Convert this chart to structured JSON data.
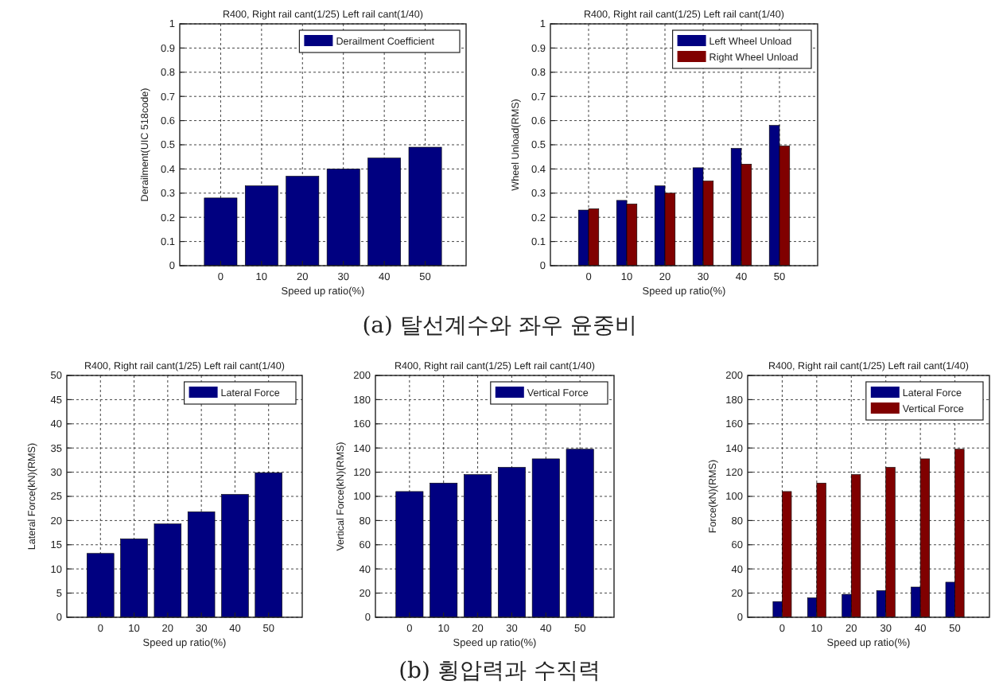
{
  "chart_data": [
    {
      "type": "bar",
      "title": "R400, Right rail cant(1/25) Left rail cant(1/40)",
      "xlabel": "Speed up ratio(%)",
      "ylabel": "Derailment(UIC 518code)",
      "categories": [
        "0",
        "10",
        "20",
        "30",
        "40",
        "50"
      ],
      "series": [
        {
          "name": "Derailment Coefficient",
          "color": "#000080",
          "values": [
            0.28,
            0.33,
            0.37,
            0.4,
            0.445,
            0.49
          ]
        }
      ],
      "ylim": [
        0,
        1
      ],
      "yticks": [
        0,
        0.1,
        0.2,
        0.3,
        0.4,
        0.5,
        0.6,
        0.7,
        0.8,
        0.9,
        1
      ],
      "grid": true,
      "legend": "top right",
      "annotations": [
        "(a) 탈선계수와 좌우 윤중비"
      ]
    },
    {
      "type": "bar",
      "title": "R400, Right rail cant(1/25) Left rail cant(1/40)",
      "xlabel": "Speed up ratio(%)",
      "ylabel": "Wheel Unload(RMS)",
      "categories": [
        "0",
        "10",
        "20",
        "30",
        "40",
        "50"
      ],
      "series": [
        {
          "name": "Left Wheel Unload",
          "color": "#000080",
          "values": [
            0.23,
            0.27,
            0.33,
            0.405,
            0.485,
            0.58
          ]
        },
        {
          "name": "Right Wheel Unload",
          "color": "#800000",
          "values": [
            0.235,
            0.255,
            0.3,
            0.35,
            0.42,
            0.495
          ]
        }
      ],
      "ylim": [
        0,
        1
      ],
      "yticks": [
        0,
        0.1,
        0.2,
        0.3,
        0.4,
        0.5,
        0.6,
        0.7,
        0.8,
        0.9,
        1
      ],
      "grid": true,
      "legend": "top right"
    },
    {
      "type": "bar",
      "title": "R400, Right rail cant(1/25) Left rail cant(1/40)",
      "xlabel": "Speed up ratio(%)",
      "ylabel": "Lateral Force(kN)(RMS)",
      "categories": [
        "0",
        "10",
        "20",
        "30",
        "40",
        "50"
      ],
      "series": [
        {
          "name": "Lateral Force",
          "color": "#000080",
          "values": [
            13.2,
            16.2,
            19.3,
            21.8,
            25.4,
            29.9
          ]
        }
      ],
      "ylim": [
        0,
        50
      ],
      "yticks": [
        0,
        5,
        10,
        15,
        20,
        25,
        30,
        35,
        40,
        45,
        50
      ],
      "grid": true,
      "legend": "top right"
    },
    {
      "type": "bar",
      "title": "R400, Right rail cant(1/25) Left rail cant(1/40)",
      "xlabel": "Speed up ratio(%)",
      "ylabel": "Vertical Force(kN)(RMS)",
      "categories": [
        "0",
        "10",
        "20",
        "30",
        "40",
        "50"
      ],
      "series": [
        {
          "name": "Vertical Force",
          "color": "#000080",
          "values": [
            104,
            111,
            118,
            124,
            131,
            139
          ]
        }
      ],
      "ylim": [
        0,
        200
      ],
      "yticks": [
        0,
        20,
        40,
        60,
        80,
        100,
        120,
        140,
        160,
        180,
        200
      ],
      "grid": true,
      "legend": "top right",
      "annotations": [
        "(b) 횡압력과 수직력"
      ]
    },
    {
      "type": "bar",
      "title": "R400, Right rail cant(1/25) Left rail cant(1/40)",
      "xlabel": "Speed up ratio(%)",
      "ylabel": "Force(kN)(RMS)",
      "categories": [
        "0",
        "10",
        "20",
        "30",
        "40",
        "50"
      ],
      "series": [
        {
          "name": "Lateral Force",
          "color": "#000080",
          "values": [
            13,
            16,
            19,
            22,
            25,
            29
          ]
        },
        {
          "name": "Vertical Force",
          "color": "#800000",
          "values": [
            104,
            111,
            118,
            124,
            131,
            139
          ]
        }
      ],
      "ylim": [
        0,
        200
      ],
      "yticks": [
        0,
        20,
        40,
        60,
        80,
        100,
        120,
        140,
        160,
        180,
        200
      ],
      "grid": true,
      "legend": "top right"
    }
  ]
}
